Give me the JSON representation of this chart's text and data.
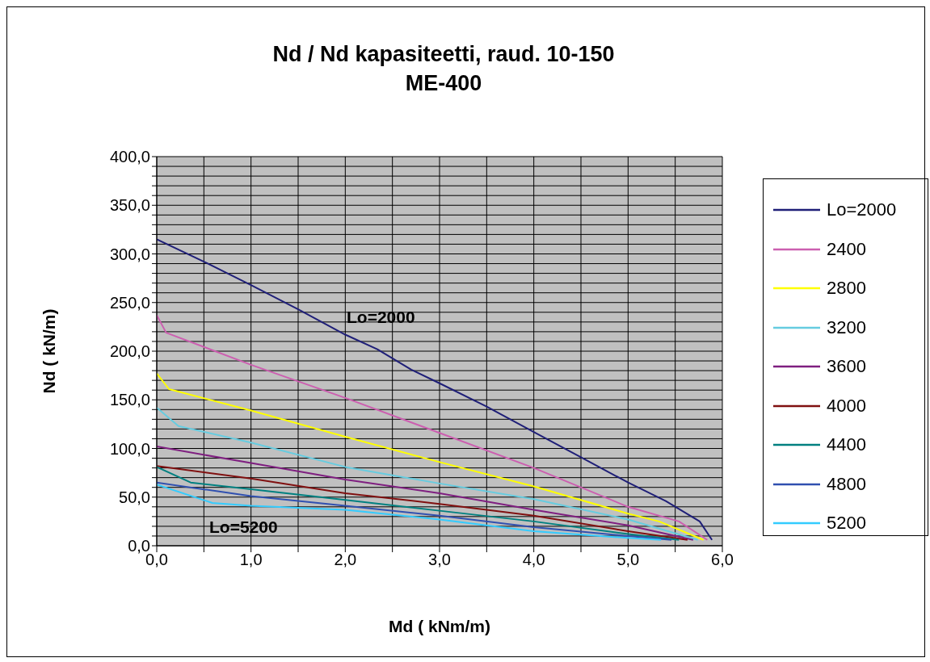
{
  "chart_data": {
    "type": "line",
    "title": "Nd / Nd kapasiteetti, raud. 10-150\nME-400",
    "xlabel": "Md ( kNm/m)",
    "ylabel": "Nd ( kN/m)",
    "xlim": [
      0,
      6
    ],
    "xticks": [
      {
        "value": 0,
        "label": "0,0"
      },
      {
        "value": 0.5,
        "label": null
      },
      {
        "value": 1,
        "label": "1,0"
      },
      {
        "value": 1.5,
        "label": null
      },
      {
        "value": 2,
        "label": "2,0"
      },
      {
        "value": 2.5,
        "label": null
      },
      {
        "value": 3,
        "label": "3,0"
      },
      {
        "value": 3.5,
        "label": null
      },
      {
        "value": 4,
        "label": "4,0"
      },
      {
        "value": 4.5,
        "label": null
      },
      {
        "value": 5,
        "label": "5,0"
      },
      {
        "value": 5.5,
        "label": null
      },
      {
        "value": 6,
        "label": "6,0"
      }
    ],
    "ylim": [
      0,
      400
    ],
    "yticks": [
      {
        "value": 0,
        "label": "0,0"
      },
      {
        "value": 10,
        "label": null
      },
      {
        "value": 20,
        "label": null
      },
      {
        "value": 30,
        "label": null
      },
      {
        "value": 40,
        "label": null
      },
      {
        "value": 50,
        "label": "50,0"
      },
      {
        "value": 60,
        "label": null
      },
      {
        "value": 70,
        "label": null
      },
      {
        "value": 80,
        "label": null
      },
      {
        "value": 90,
        "label": null
      },
      {
        "value": 100,
        "label": "100,0"
      },
      {
        "value": 110,
        "label": null
      },
      {
        "value": 120,
        "label": null
      },
      {
        "value": 130,
        "label": null
      },
      {
        "value": 140,
        "label": null
      },
      {
        "value": 150,
        "label": "150,0"
      },
      {
        "value": 160,
        "label": null
      },
      {
        "value": 170,
        "label": null
      },
      {
        "value": 180,
        "label": null
      },
      {
        "value": 190,
        "label": null
      },
      {
        "value": 200,
        "label": "200,0"
      },
      {
        "value": 210,
        "label": null
      },
      {
        "value": 220,
        "label": null
      },
      {
        "value": 230,
        "label": null
      },
      {
        "value": 240,
        "label": null
      },
      {
        "value": 250,
        "label": "250,0"
      },
      {
        "value": 260,
        "label": null
      },
      {
        "value": 270,
        "label": null
      },
      {
        "value": 280,
        "label": null
      },
      {
        "value": 290,
        "label": null
      },
      {
        "value": 300,
        "label": "300,0"
      },
      {
        "value": 310,
        "label": null
      },
      {
        "value": 320,
        "label": null
      },
      {
        "value": 330,
        "label": null
      },
      {
        "value": 340,
        "label": null
      },
      {
        "value": 350,
        "label": "350,0"
      },
      {
        "value": 360,
        "label": null
      },
      {
        "value": 370,
        "label": null
      },
      {
        "value": 380,
        "label": null
      },
      {
        "value": 390,
        "label": null
      },
      {
        "value": 400,
        "label": "400,0"
      }
    ],
    "grid": true,
    "legend": "right",
    "annotations": [
      "Lo=2000",
      "Lo=5200"
    ],
    "series": [
      {
        "name": "Lo=2000",
        "color": "#1f1f78",
        "x": [
          0,
          0.5,
          1,
          1.5,
          2,
          2.34,
          2.7,
          3,
          3.5,
          4,
          4.5,
          5,
          5.4,
          5.76,
          5.89
        ],
        "values": [
          315,
          292,
          268,
          243,
          217,
          202,
          181,
          167,
          143,
          117,
          91,
          65,
          46,
          25,
          6
        ]
      },
      {
        "name": "2400",
        "color": "#cc5fb0",
        "x": [
          0,
          0.1,
          1,
          2,
          3,
          4,
          5,
          5.54,
          5.84
        ],
        "values": [
          237,
          219,
          186,
          152,
          116,
          80,
          40,
          25,
          6
        ]
      },
      {
        "name": "2800",
        "color": "#ffff00",
        "x": [
          0,
          0.13,
          1,
          2,
          3,
          4,
          5,
          5.33,
          5.8
        ],
        "values": [
          177,
          161,
          139,
          112,
          86,
          61,
          33,
          25,
          6
        ]
      },
      {
        "name": "3200",
        "color": "#66cce0",
        "x": [
          0,
          0.23,
          1,
          2,
          3,
          4,
          5,
          5.74
        ],
        "values": [
          142,
          123,
          106,
          81,
          64,
          48,
          27,
          6
        ]
      },
      {
        "name": "3600",
        "color": "#7f1f80",
        "x": [
          0,
          1,
          2,
          3,
          4,
          5,
          5.69
        ],
        "values": [
          102,
          85,
          68,
          54,
          37,
          21,
          6
        ]
      },
      {
        "name": "4000",
        "color": "#801010",
        "x": [
          0,
          1,
          2,
          3,
          4,
          5,
          5.63
        ],
        "values": [
          82,
          69,
          54,
          43,
          31,
          15,
          6
        ]
      },
      {
        "name": "4400",
        "color": "#008080",
        "x": [
          0,
          0.36,
          1,
          2,
          3,
          4,
          5,
          5.54
        ],
        "values": [
          81,
          65,
          58,
          47,
          36,
          25,
          12,
          6
        ]
      },
      {
        "name": "4800",
        "color": "#3050b0",
        "x": [
          0,
          1,
          2,
          3,
          4,
          5,
          5.46
        ],
        "values": [
          65,
          51,
          41,
          31,
          19,
          10,
          6
        ]
      },
      {
        "name": "5200",
        "color": "#33ccff",
        "x": [
          0,
          0.59,
          1,
          2,
          3,
          4,
          5,
          5.35
        ],
        "values": [
          63,
          44,
          41,
          37,
          27,
          15,
          8,
          6
        ]
      }
    ]
  }
}
